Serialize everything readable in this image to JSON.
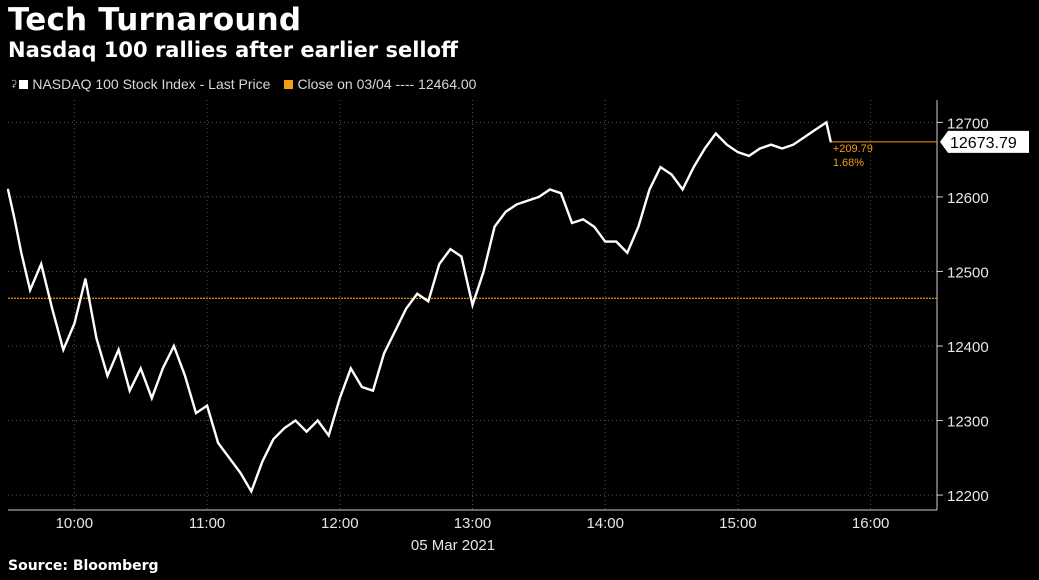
{
  "header": {
    "title": "Tech Turnaround",
    "subtitle": "Nasdaq 100 rallies after earlier selloff"
  },
  "legend": {
    "series_label": "NASDAQ 100 Stock Index - Last Price",
    "close_label": "Close on 03/04 ---- 12464.00"
  },
  "footer": {
    "source": "Source: Bloomberg"
  },
  "colors": {
    "background": "#000000",
    "line": "#ffffff",
    "close": "#f39c12",
    "grid": "#555555"
  },
  "chart_data": {
    "type": "line",
    "title": "Tech Turnaround",
    "subtitle": "Nasdaq 100 rallies after earlier selloff",
    "xlabel": "05 Mar 2021",
    "ylabel": "",
    "x_ticks": [
      "10:00",
      "11:00",
      "12:00",
      "13:00",
      "14:00",
      "15:00",
      "16:00"
    ],
    "y_ticks": [
      12200,
      12300,
      12400,
      12500,
      12600,
      12700
    ],
    "xlim": [
      "09:30",
      "16:30"
    ],
    "ylim": [
      12180,
      12730
    ],
    "grid": true,
    "legend_position": "top-left",
    "reference_line": {
      "name": "Close on 03/04",
      "value": 12464.0
    },
    "last_value_label": "12673.79",
    "change_label": "+209.79",
    "change_pct_label": "1.68%",
    "series": [
      {
        "name": "NASDAQ 100 Stock Index - Last Price",
        "x": [
          "09:30",
          "09:33",
          "09:36",
          "09:40",
          "09:45",
          "09:50",
          "09:55",
          "10:00",
          "10:05",
          "10:10",
          "10:15",
          "10:20",
          "10:25",
          "10:30",
          "10:35",
          "10:40",
          "10:45",
          "10:50",
          "10:55",
          "11:00",
          "11:05",
          "11:10",
          "11:15",
          "11:20",
          "11:25",
          "11:30",
          "11:35",
          "11:40",
          "11:45",
          "11:50",
          "11:55",
          "12:00",
          "12:05",
          "12:10",
          "12:15",
          "12:20",
          "12:25",
          "12:30",
          "12:35",
          "12:40",
          "12:45",
          "12:50",
          "12:55",
          "13:00",
          "13:05",
          "13:10",
          "13:15",
          "13:20",
          "13:25",
          "13:30",
          "13:35",
          "13:40",
          "13:45",
          "13:50",
          "13:55",
          "14:00",
          "14:05",
          "14:10",
          "14:15",
          "14:20",
          "14:25",
          "14:30",
          "14:35",
          "14:40",
          "14:45",
          "14:50",
          "14:55",
          "15:00",
          "15:05",
          "15:10",
          "15:15",
          "15:20",
          "15:25",
          "15:30",
          "15:35",
          "15:40",
          "15:42"
        ],
        "y": [
          12610,
          12570,
          12525,
          12475,
          12510,
          12450,
          12395,
          12430,
          12490,
          12410,
          12360,
          12395,
          12340,
          12370,
          12330,
          12370,
          12400,
          12360,
          12310,
          12320,
          12270,
          12250,
          12230,
          12205,
          12245,
          12275,
          12290,
          12300,
          12285,
          12300,
          12280,
          12330,
          12370,
          12345,
          12340,
          12390,
          12420,
          12450,
          12470,
          12460,
          12510,
          12530,
          12520,
          12455,
          12500,
          12560,
          12580,
          12590,
          12595,
          12600,
          12610,
          12605,
          12565,
          12570,
          12560,
          12540,
          12540,
          12525,
          12560,
          12610,
          12640,
          12630,
          12610,
          12640,
          12665,
          12685,
          12670,
          12660,
          12655,
          12665,
          12670,
          12665,
          12670,
          12680,
          12690,
          12700,
          12673.79
        ]
      }
    ]
  }
}
